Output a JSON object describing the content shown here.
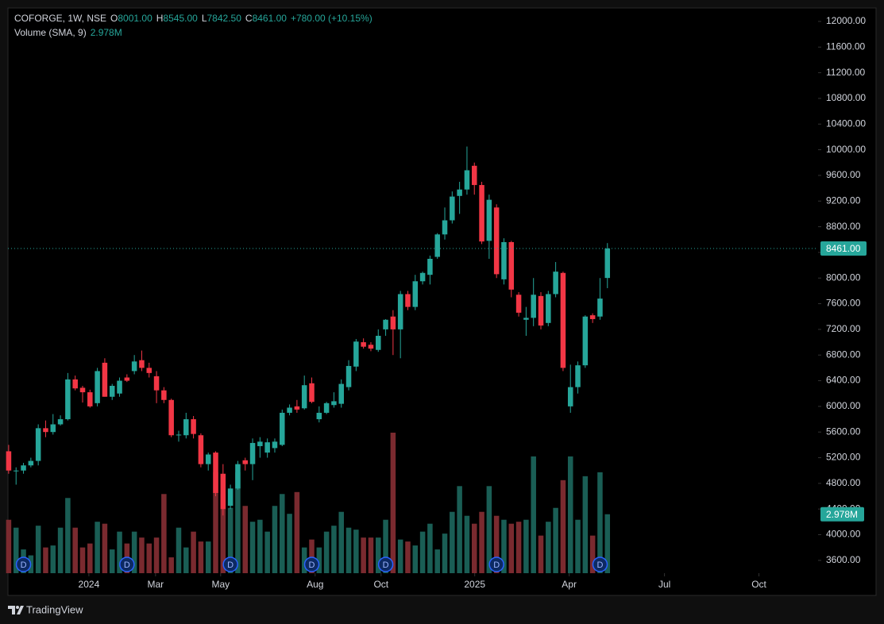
{
  "chart_data": {
    "type": "candlestick",
    "legend": {
      "symbol": "COFORGE, 1W, NSE",
      "items": [
        {
          "label": "O",
          "value": "8001.00"
        },
        {
          "label": "H",
          "value": "8545.00"
        },
        {
          "label": "L",
          "value": "7842.50"
        },
        {
          "label": "C",
          "value": "8461.00"
        }
      ],
      "change": "+780.00 (+10.15%)"
    },
    "up_color": "#26a69a",
    "down_color": "#f23645",
    "open": [
      5300,
      4990,
      5000,
      5080,
      5150,
      5660,
      5600,
      5720,
      5800,
      6420,
      6290,
      6220,
      6050,
      6680,
      6150,
      6200,
      6450,
      6550,
      6720,
      6600,
      6470,
      6250,
      6100,
      5550,
      5550,
      5800,
      5550,
      5100,
      5280,
      4950,
      4450,
      4720,
      5160,
      5100,
      5380,
      5280,
      5350,
      5400,
      5900,
      6000,
      5970,
      6360,
      5800,
      5900,
      6020,
      6040,
      6300,
      6620,
      7000,
      6960,
      6880,
      7200,
      7400,
      7200,
      7750,
      7550,
      7950,
      8050,
      8330,
      8680,
      8900,
      9280,
      9380,
      9750,
      9450,
      8580,
      9100,
      7980,
      8560,
      7740,
      7350,
      7380,
      7720,
      7300,
      7750,
      8080,
      6000,
      6300,
      6640,
      7420,
      7400,
      8001
    ],
    "high": [
      5400,
      5050,
      5120,
      5200,
      5720,
      5780,
      5880,
      5860,
      6520,
      6480,
      6320,
      6260,
      6600,
      6750,
      6350,
      6450,
      6500,
      6800,
      6870,
      6680,
      6550,
      6300,
      6120,
      5620,
      5900,
      5850,
      5580,
      5280,
      5300,
      5100,
      4780,
      5150,
      5200,
      5500,
      5520,
      5500,
      5500,
      5950,
      6030,
      6100,
      6480,
      6450,
      6000,
      6070,
      6220,
      6420,
      6720,
      7050,
      7060,
      7000,
      7200,
      7360,
      7500,
      7800,
      7800,
      8050,
      8100,
      8350,
      8700,
      9100,
      9350,
      9500,
      10050,
      9800,
      9500,
      9300,
      9150,
      8620,
      8580,
      7780,
      7550,
      8000,
      7780,
      7800,
      8250,
      8100,
      6650,
      6700,
      7420,
      7450,
      8000,
      8545
    ],
    "low": [
      4950,
      4780,
      4950,
      5050,
      5080,
      5520,
      5560,
      5700,
      5780,
      6250,
      6060,
      5980,
      6000,
      6150,
      6100,
      6150,
      6380,
      6500,
      6550,
      6450,
      6050,
      6050,
      5520,
      5450,
      5500,
      5500,
      5050,
      5000,
      4600,
      4300,
      4400,
      4700,
      5000,
      4850,
      5200,
      5200,
      5280,
      5380,
      5860,
      5900,
      5950,
      6050,
      5750,
      5880,
      5980,
      5980,
      6250,
      6550,
      6900,
      6860,
      6850,
      7100,
      6800,
      6750,
      7500,
      7500,
      7900,
      7900,
      8300,
      8600,
      8850,
      9000,
      9300,
      9300,
      8530,
      8300,
      8000,
      7900,
      7700,
      7400,
      7100,
      7250,
      7200,
      7250,
      7700,
      6550,
      5900,
      6200,
      6600,
      7300,
      7350,
      7842.5
    ],
    "close": [
      5000,
      5000,
      5080,
      5150,
      5660,
      5600,
      5720,
      5800,
      6420,
      6280,
      6220,
      6000,
      6550,
      6150,
      6320,
      6400,
      6400,
      6700,
      6600,
      6520,
      6250,
      6100,
      5550,
      5560,
      5800,
      5570,
      5100,
      5250,
      4650,
      4400,
      4720,
      5100,
      5100,
      5430,
      5450,
      5440,
      5450,
      5900,
      5980,
      5950,
      6330,
      6070,
      5900,
      6050,
      6080,
      6350,
      6630,
      7010,
      6930,
      6900,
      7100,
      7350,
      7200,
      7750,
      7550,
      7950,
      8080,
      8300,
      8680,
      8900,
      9270,
      9380,
      9680,
      9450,
      8570,
      9220,
      8060,
      8560,
      7820,
      7460,
      7380,
      7740,
      7260,
      7750,
      8100,
      6600,
      6300,
      6640,
      7400,
      7360,
      7680,
      8461
    ],
    "last_label": "8461.00",
    "volume": {
      "name": "Volume (SMA, 9)",
      "up_color": "#1a5e55",
      "down_color": "#7a2a2f",
      "values": [
        2.7,
        2.3,
        1.2,
        0.9,
        2.4,
        1.3,
        1.4,
        2.3,
        3.8,
        2.3,
        1.3,
        1.5,
        2.6,
        2.5,
        1.2,
        2.1,
        1.5,
        2.1,
        1.8,
        1.5,
        1.8,
        4.0,
        0.8,
        2.3,
        1.3,
        2.1,
        1.6,
        1.6,
        5.1,
        4.0,
        3.3,
        5.1,
        3.4,
        2.6,
        2.7,
        2.1,
        3.4,
        4.0,
        3.0,
        4.1,
        1.3,
        1.7,
        1.3,
        2.1,
        2.4,
        3.1,
        2.3,
        2.2,
        1.8,
        1.8,
        1.8,
        2.7,
        7.1,
        1.7,
        1.6,
        1.4,
        2.1,
        2.5,
        1.2,
        2.0,
        3.1,
        4.4,
        2.9,
        2.5,
        3.1,
        4.4,
        2.9,
        2.7,
        2.5,
        2.6,
        2.7,
        5.9,
        1.9,
        2.6,
        3.3,
        4.7,
        5.9,
        2.7,
        4.9,
        1.9,
        5.1,
        2.978
      ],
      "last_label": "2.978M"
    },
    "markers": [
      {
        "at": 2,
        "label": "D"
      },
      {
        "at": 16,
        "label": "D"
      },
      {
        "at": 30,
        "label": "D"
      },
      {
        "at": 41,
        "label": "D"
      },
      {
        "at": 51,
        "label": "D"
      },
      {
        "at": 66,
        "label": "D"
      },
      {
        "at": 80,
        "label": "D"
      }
    ],
    "xlim": [
      -0.1,
      109.5
    ],
    "xticks": [
      {
        "value": 10.85,
        "label": "2024"
      },
      {
        "value": 19.87,
        "label": "Mar"
      },
      {
        "value": 28.68,
        "label": "May"
      },
      {
        "value": 41.46,
        "label": "Aug"
      },
      {
        "value": 50.38,
        "label": "Oct"
      },
      {
        "value": 63.05,
        "label": "2025"
      },
      {
        "value": 75.83,
        "label": "Apr"
      },
      {
        "value": 88.72,
        "label": "Jul"
      },
      {
        "value": 101.5,
        "label": "Oct"
      }
    ],
    "ylim": [
      3400,
      12210
    ],
    "yticks": [
      {
        "value": 3600,
        "label": "3600.00"
      },
      {
        "value": 4000,
        "label": "4000.00"
      },
      {
        "value": 4400,
        "label": "4400.00"
      },
      {
        "value": 4800,
        "label": "4800.00"
      },
      {
        "value": 5200,
        "label": "5200.00"
      },
      {
        "value": 5600,
        "label": "5600.00"
      },
      {
        "value": 6000,
        "label": "6000.00"
      },
      {
        "value": 6400,
        "label": "6400.00"
      },
      {
        "value": 6800,
        "label": "6800.00"
      },
      {
        "value": 7200,
        "label": "7200.00"
      },
      {
        "value": 7600,
        "label": "7600.00"
      },
      {
        "value": 8000,
        "label": "8000.00"
      },
      {
        "value": 8400,
        "label": "8400.00"
      },
      {
        "value": 8800,
        "label": "8800.00"
      },
      {
        "value": 9200,
        "label": "9200.00"
      },
      {
        "value": 9600,
        "label": "9600.00"
      },
      {
        "value": 10000,
        "label": "10000.00"
      },
      {
        "value": 10400,
        "label": "10400.00"
      },
      {
        "value": 10800,
        "label": "10800.00"
      },
      {
        "value": 11200,
        "label": "11200.00"
      },
      {
        "value": 11600,
        "label": "11600.00"
      },
      {
        "value": 12000,
        "label": "12000.00"
      }
    ],
    "grid": false
  },
  "branding": "TradingView"
}
